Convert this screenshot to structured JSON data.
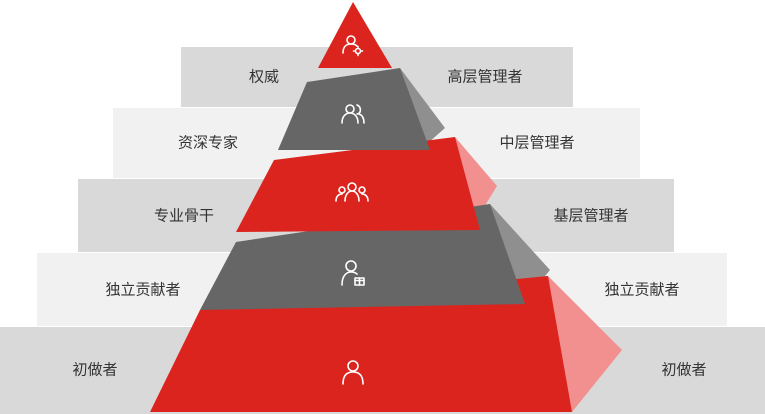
{
  "colors": {
    "red": "#DC241F",
    "red_side": "#F29090",
    "red_side_dark": "#E57878",
    "gray": "#666666",
    "gray_side": "#8F8F8F",
    "band_dark": "#D9D9D9",
    "band_light": "#F1F1F1",
    "icon": "#FFFFFF"
  },
  "levels": [
    {
      "left_label": "权威",
      "right_label": "高层管理者",
      "icon": "user-gear-icon"
    },
    {
      "left_label": "资深专家",
      "right_label": "中层管理者",
      "icon": "two-users-icon"
    },
    {
      "left_label": "专业骨干",
      "right_label": "基层管理者",
      "icon": "user-group-icon"
    },
    {
      "left_label": "独立贡献者",
      "right_label": "独立贡献者",
      "icon": "user-gift-icon"
    },
    {
      "left_label": "初做者",
      "right_label": "初做者",
      "icon": "user-icon"
    }
  ]
}
